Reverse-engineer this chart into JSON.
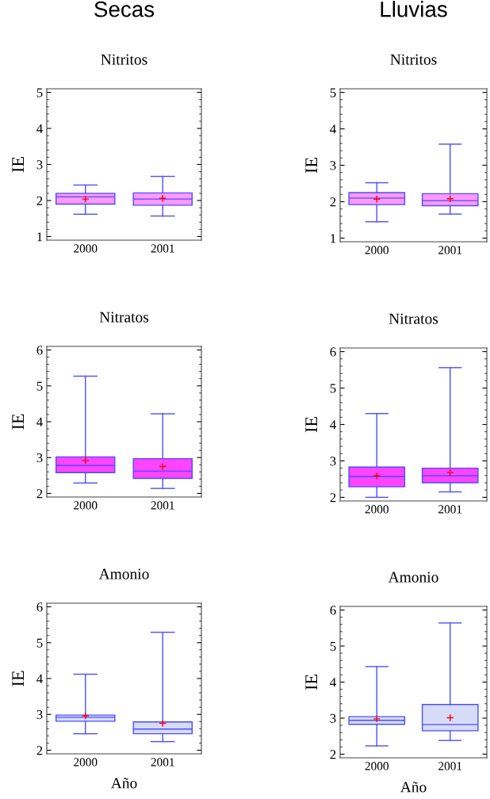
{
  "chart_data": [
    {
      "type": "box",
      "title": "Nitritos",
      "annotations": [
        "Secas"
      ],
      "ylabel": "IE",
      "categories": [
        "2000",
        "2001"
      ],
      "colors": [
        "#ff99ff",
        "#ff99ff"
      ],
      "ylim": [
        0.9,
        5.1
      ],
      "yticks": [
        1,
        2,
        3,
        4,
        5
      ],
      "boxes": [
        {
          "low": 1.62,
          "q1": 1.9,
          "median": 2.1,
          "q3": 2.2,
          "high": 2.43,
          "mean": 2.04
        },
        {
          "low": 1.57,
          "q1": 1.87,
          "median": 2.04,
          "q3": 2.21,
          "high": 2.67,
          "mean": 2.06
        }
      ]
    },
    {
      "type": "box",
      "title": "Nitritos",
      "annotations": [
        "Lluvias"
      ],
      "ylabel": "IE",
      "categories": [
        "2000",
        "2001"
      ],
      "colors": [
        "#ff99ff",
        "#ff99ff"
      ],
      "ylim": [
        0.9,
        5.1
      ],
      "yticks": [
        1,
        2,
        3,
        4,
        5
      ],
      "boxes": [
        {
          "low": 1.45,
          "q1": 1.92,
          "median": 2.1,
          "q3": 2.25,
          "high": 2.52,
          "mean": 2.07
        },
        {
          "low": 1.66,
          "q1": 1.89,
          "median": 2.03,
          "q3": 2.22,
          "high": 3.58,
          "mean": 2.08
        }
      ]
    },
    {
      "type": "box",
      "title": "Nitratos",
      "ylabel": "IE",
      "categories": [
        "2000",
        "2001"
      ],
      "colors": [
        "#ff44ff",
        "#ff44ff"
      ],
      "ylim": [
        1.9,
        6.1
      ],
      "yticks": [
        2,
        3,
        4,
        5,
        6
      ],
      "boxes": [
        {
          "low": 2.29,
          "q1": 2.58,
          "median": 2.78,
          "q3": 3.02,
          "high": 5.27,
          "mean": 2.92
        },
        {
          "low": 2.14,
          "q1": 2.42,
          "median": 2.62,
          "q3": 2.97,
          "high": 4.22,
          "mean": 2.75
        }
      ]
    },
    {
      "type": "box",
      "title": "Nitratos",
      "ylabel": "IE",
      "categories": [
        "2000",
        "2001"
      ],
      "colors": [
        "#ff44ff",
        "#ff44ff"
      ],
      "ylim": [
        1.9,
        6.1
      ],
      "yticks": [
        2,
        3,
        4,
        5,
        6
      ],
      "boxes": [
        {
          "low": 2.0,
          "q1": 2.29,
          "median": 2.57,
          "q3": 2.83,
          "high": 4.3,
          "mean": 2.59
        },
        {
          "low": 2.15,
          "q1": 2.4,
          "median": 2.59,
          "q3": 2.8,
          "high": 5.56,
          "mean": 2.68
        }
      ]
    },
    {
      "type": "box",
      "title": "Amonio",
      "xlabel": "Año",
      "ylabel": "IE",
      "categories": [
        "2000",
        "2001"
      ],
      "colors": [
        "#d6dcf8",
        "#d6dcf8"
      ],
      "ylim": [
        1.9,
        6.1
      ],
      "yticks": [
        2,
        3,
        4,
        5,
        6
      ],
      "boxes": [
        {
          "low": 2.46,
          "q1": 2.81,
          "median": 2.92,
          "q3": 2.98,
          "high": 4.12,
          "mean": 2.96
        },
        {
          "low": 2.24,
          "q1": 2.46,
          "median": 2.59,
          "q3": 2.79,
          "high": 5.29,
          "mean": 2.75
        }
      ]
    },
    {
      "type": "box",
      "title": "Amonio",
      "xlabel": "Año",
      "ylabel": "IE",
      "categories": [
        "2000",
        "2001"
      ],
      "colors": [
        "#d6dcf8",
        "#d6dcf8"
      ],
      "ylim": [
        1.9,
        6.1
      ],
      "yticks": [
        2,
        3,
        4,
        5,
        6
      ],
      "boxes": [
        {
          "low": 2.23,
          "q1": 2.83,
          "median": 2.94,
          "q3": 3.04,
          "high": 4.43,
          "mean": 2.98
        },
        {
          "low": 2.38,
          "q1": 2.65,
          "median": 2.82,
          "q3": 3.38,
          "high": 5.64,
          "mean": 3.01
        }
      ]
    }
  ]
}
